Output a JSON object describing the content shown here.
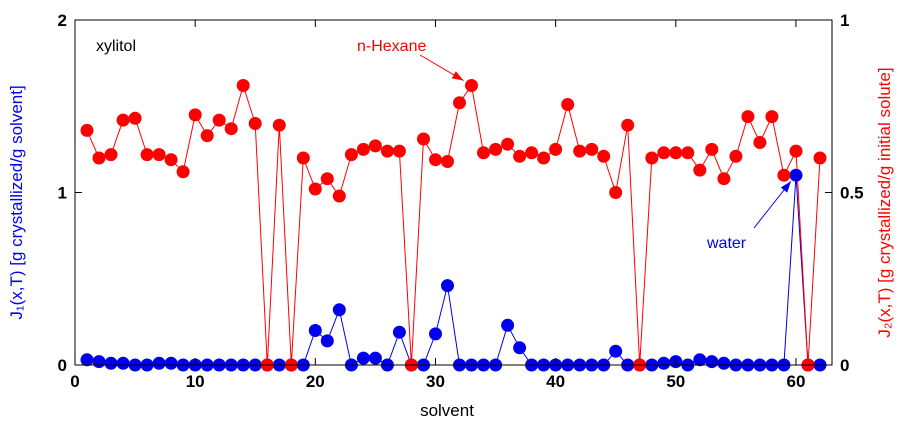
{
  "chart_data": {
    "type": "scatter",
    "title": "",
    "annotation": "xylitol",
    "xlabel": "solvent",
    "ylabel_left": "J₁(x,T) [g crystallized/g solvent]",
    "ylabel_right": "J₂(x,T) [g crystallized/g initial solute]",
    "xlim": [
      0,
      63
    ],
    "ylim_left": [
      0,
      2
    ],
    "ylim_right": [
      0,
      1
    ],
    "x_ticks": [
      "0",
      "10",
      "20",
      "30",
      "40",
      "50",
      "60"
    ],
    "y_left_ticks": [
      "0",
      "1",
      "2"
    ],
    "y_right_ticks": [
      "0",
      "0.5",
      "1"
    ],
    "grid": false,
    "series": [
      {
        "name": "water",
        "axis": "left",
        "color": "#0000ee",
        "x": [
          1,
          2,
          3,
          4,
          5,
          6,
          7,
          8,
          9,
          10,
          11,
          12,
          13,
          14,
          15,
          16,
          17,
          18,
          19,
          20,
          21,
          22,
          23,
          24,
          25,
          26,
          27,
          28,
          29,
          30,
          31,
          32,
          33,
          34,
          35,
          36,
          37,
          38,
          39,
          40,
          41,
          42,
          43,
          44,
          45,
          46,
          47,
          48,
          49,
          50,
          51,
          52,
          53,
          54,
          55,
          56,
          57,
          58,
          59,
          60,
          61,
          62
        ],
        "values": [
          0.03,
          0.02,
          0.01,
          0.01,
          0.0,
          0.0,
          0.01,
          0.01,
          0.0,
          0.0,
          0.0,
          0.0,
          0.0,
          0.0,
          0.0,
          0.0,
          0.0,
          0.0,
          0.0,
          0.2,
          0.14,
          0.32,
          0.0,
          0.04,
          0.04,
          0.0,
          0.19,
          0.0,
          0.0,
          0.18,
          0.46,
          0.0,
          0.0,
          0.0,
          0.0,
          0.23,
          0.1,
          0.0,
          0.0,
          0.0,
          0.0,
          0.0,
          0.0,
          0.0,
          0.08,
          0.0,
          0.0,
          0.0,
          0.01,
          0.02,
          0.0,
          0.03,
          0.02,
          0.01,
          0.0,
          0.0,
          0.0,
          0.0,
          0.0,
          1.1,
          0.0,
          0.0
        ]
      },
      {
        "name": "n-Hexane",
        "axis": "right",
        "color": "#ff0000",
        "x": [
          1,
          2,
          3,
          4,
          5,
          6,
          7,
          8,
          9,
          10,
          11,
          12,
          13,
          14,
          15,
          16,
          17,
          18,
          19,
          20,
          21,
          22,
          23,
          24,
          25,
          26,
          27,
          28,
          29,
          30,
          31,
          32,
          33,
          34,
          35,
          36,
          37,
          38,
          39,
          40,
          41,
          42,
          43,
          44,
          45,
          46,
          47,
          48,
          49,
          50,
          51,
          52,
          53,
          54,
          55,
          56,
          57,
          58,
          59,
          60,
          61,
          62
        ],
        "values": [
          0.68,
          0.6,
          0.61,
          0.71,
          0.715,
          0.61,
          0.61,
          0.595,
          0.56,
          0.725,
          0.665,
          0.71,
          0.685,
          0.81,
          0.7,
          0.0,
          0.695,
          0.0,
          0.6,
          0.51,
          0.54,
          0.49,
          0.61,
          0.625,
          0.635,
          0.62,
          0.62,
          0.0,
          0.655,
          0.595,
          0.59,
          0.76,
          0.81,
          0.615,
          0.625,
          0.64,
          0.605,
          0.615,
          0.6,
          0.625,
          0.755,
          0.62,
          0.625,
          0.605,
          0.5,
          0.695,
          0.0,
          0.6,
          0.615,
          0.615,
          0.615,
          0.565,
          0.625,
          0.54,
          0.605,
          0.72,
          0.645,
          0.72,
          0.55,
          0.62,
          0.0,
          0.6
        ]
      }
    ],
    "annotations": [
      {
        "text": "n-Hexane",
        "color": "#ff0000"
      },
      {
        "text": "water",
        "color": "#0000ee"
      }
    ]
  }
}
